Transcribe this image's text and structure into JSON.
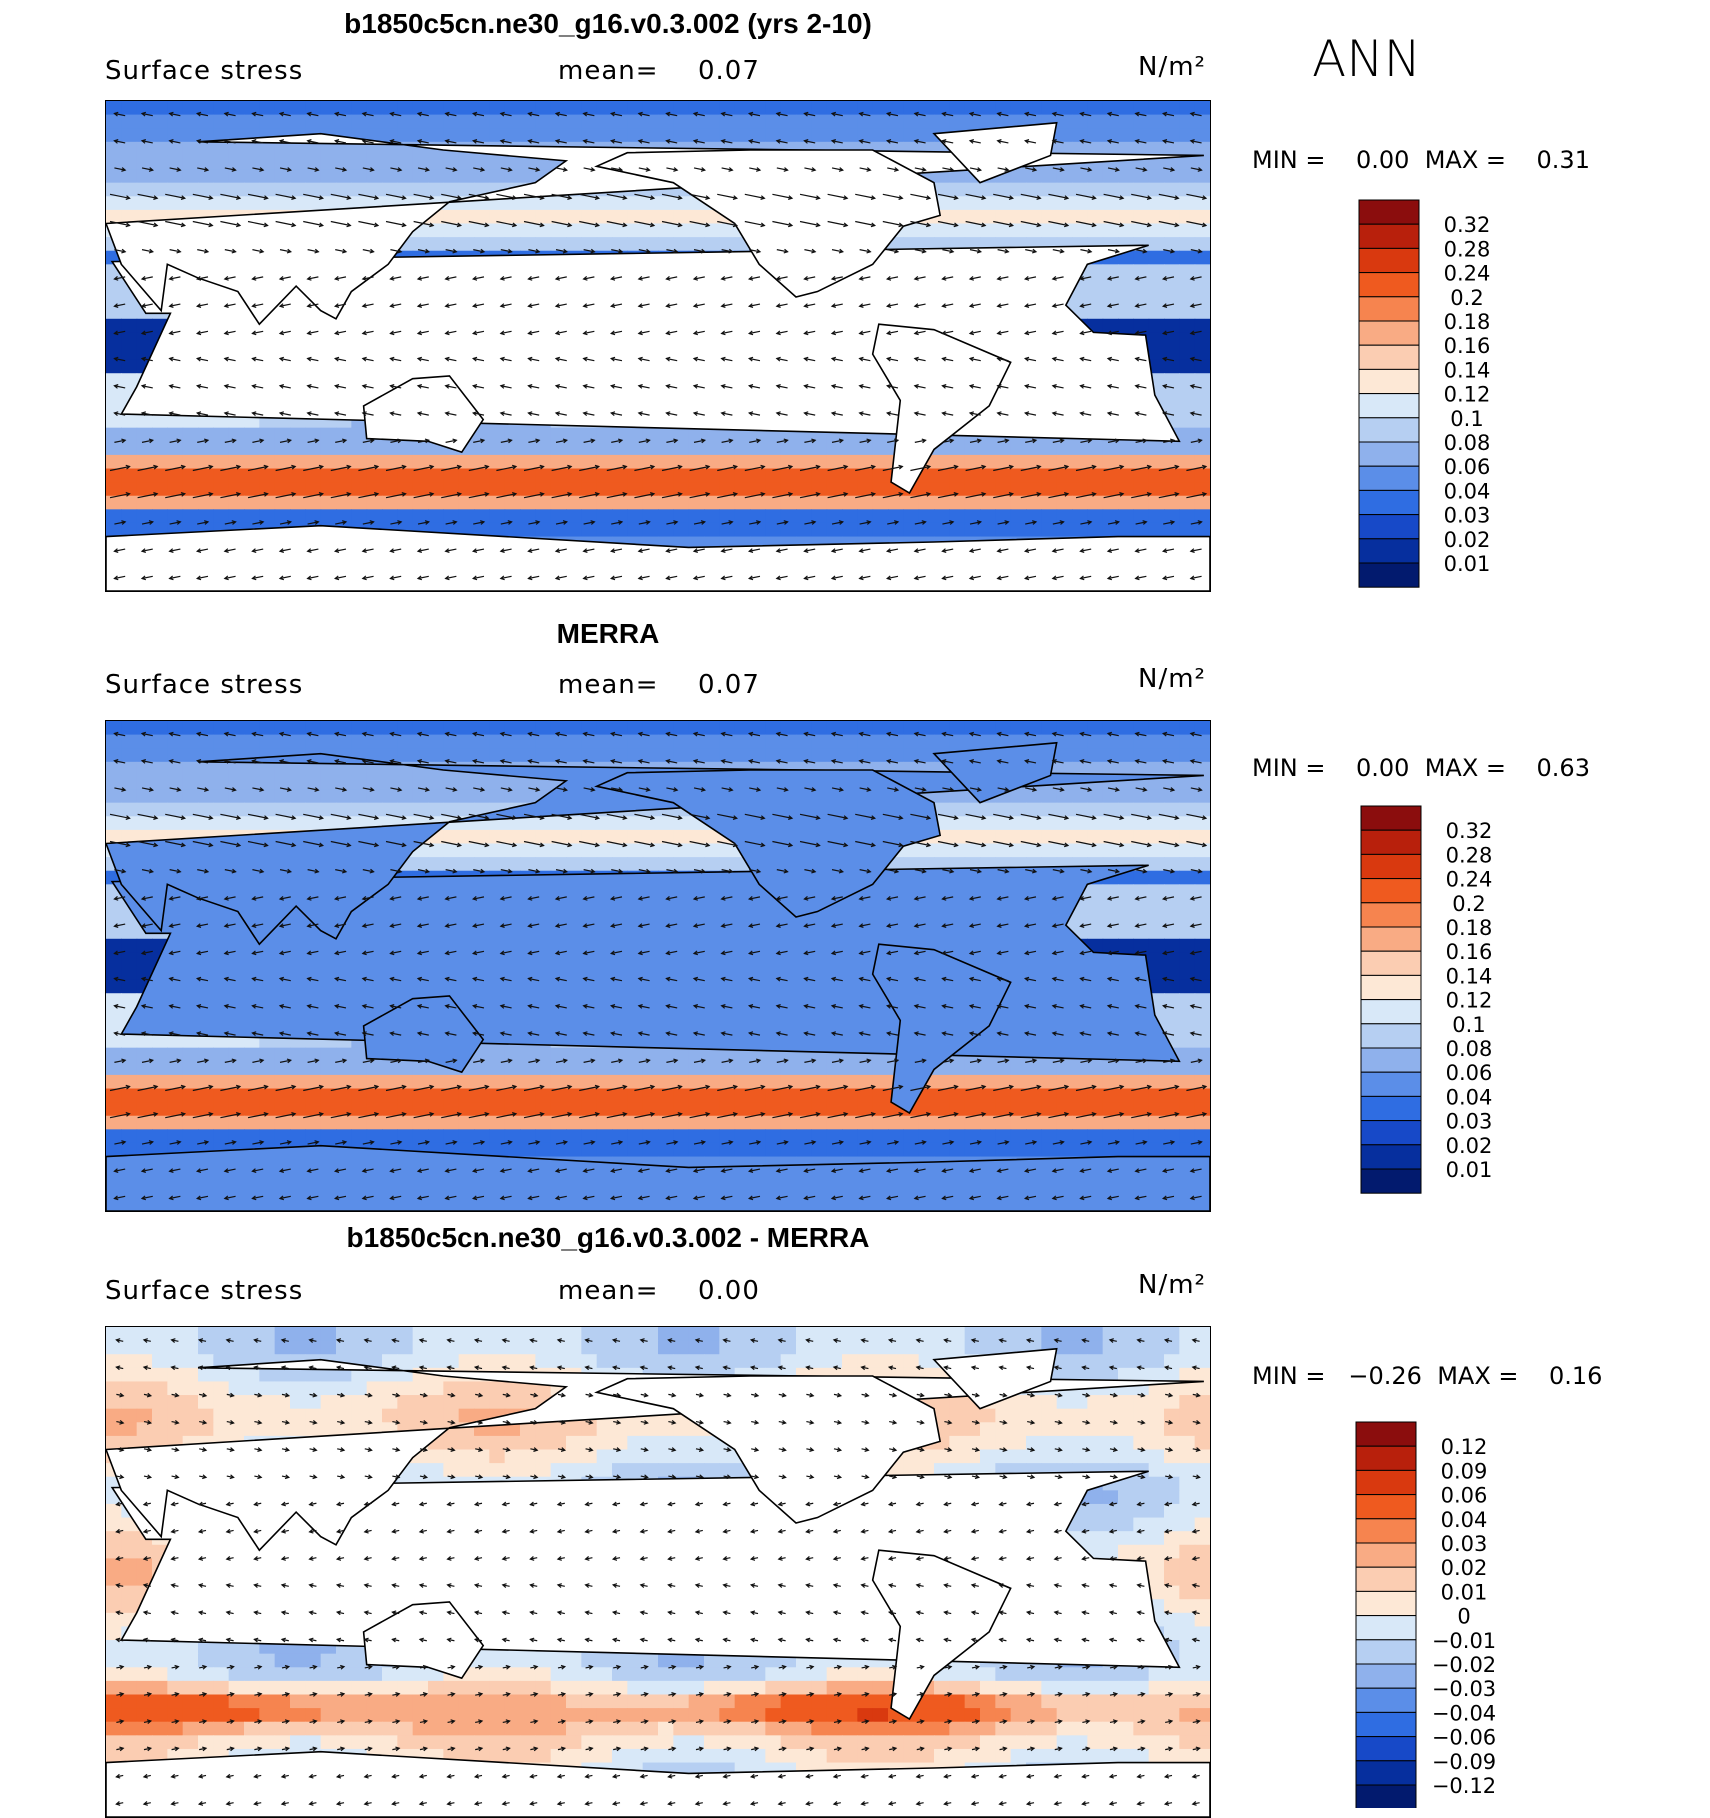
{
  "season": "ANN",
  "panels": [
    {
      "title": "b1850c5cn.ne30_g16.v0.3.002 (yrs 2-10)",
      "left_label": "Surface stress",
      "mean_label": "mean=",
      "mean_value": "0.07",
      "units": "N/m²",
      "min_label": "MIN =",
      "min_value": "0.00",
      "max_label": "MAX =",
      "max_value": "0.31",
      "colorbar_labels": [
        "0.32",
        "0.28",
        "0.24",
        "0.2",
        "0.18",
        "0.16",
        "0.14",
        "0.12",
        "0.1",
        "0.08",
        "0.06",
        "0.04",
        "0.03",
        "0.02",
        "0.01"
      ],
      "colors": [
        "#8b0d0d",
        "#b8200c",
        "#d9390f",
        "#ef5a1f",
        "#f6844f",
        "#f9ab84",
        "#fbcdb2",
        "#fde8d6",
        "#d8e8f8",
        "#b6cff2",
        "#8fb1ec",
        "#5b8ee8",
        "#2f6de2",
        "#1749c8",
        "#062f9e",
        "#021a6e"
      ]
    },
    {
      "title": "MERRA",
      "left_label": "Surface stress",
      "mean_label": "mean=",
      "mean_value": "0.07",
      "units": "N/m²",
      "min_label": "MIN =",
      "min_value": "0.00",
      "max_label": "MAX =",
      "max_value": "0.63",
      "colorbar_labels": [
        "0.32",
        "0.28",
        "0.24",
        "0.2",
        "0.18",
        "0.16",
        "0.14",
        "0.12",
        "0.1",
        "0.08",
        "0.06",
        "0.04",
        "0.03",
        "0.02",
        "0.01"
      ],
      "colors": [
        "#8b0d0d",
        "#b8200c",
        "#d9390f",
        "#ef5a1f",
        "#f6844f",
        "#f9ab84",
        "#fbcdb2",
        "#fde8d6",
        "#d8e8f8",
        "#b6cff2",
        "#8fb1ec",
        "#5b8ee8",
        "#2f6de2",
        "#1749c8",
        "#062f9e",
        "#021a6e"
      ]
    },
    {
      "title": "b1850c5cn.ne30_g16.v0.3.002 - MERRA",
      "left_label": "Surface stress",
      "mean_label": "mean=",
      "mean_value": "0.00",
      "units": "N/m²",
      "min_label": "MIN =",
      "min_value": "−0.26",
      "max_label": "MAX =",
      "max_value": "0.16",
      "colorbar_labels": [
        "0.12",
        "0.09",
        "0.06",
        "0.04",
        "0.03",
        "0.02",
        "0.01",
        "0",
        "−0.01",
        "−0.02",
        "−0.03",
        "−0.04",
        "−0.06",
        "−0.09",
        "−0.12"
      ],
      "colors": [
        "#8b0d0d",
        "#b8200c",
        "#d9390f",
        "#ef5a1f",
        "#f6844f",
        "#f9ab84",
        "#fbcdb2",
        "#fde8d6",
        "#d8e8f8",
        "#b6cff2",
        "#8fb1ec",
        "#5b8ee8",
        "#2f6de2",
        "#1749c8",
        "#062f9e",
        "#021a6e"
      ]
    }
  ],
  "chart_data": [
    {
      "type": "heatmap",
      "title": "b1850c5cn.ne30_g16.v0.3.002 (yrs 2-10)",
      "variable": "Surface stress",
      "units": "N/m²",
      "mean": 0.07,
      "min": 0.0,
      "max": 0.31,
      "levels": [
        0.01,
        0.02,
        0.03,
        0.04,
        0.06,
        0.08,
        0.1,
        0.12,
        0.14,
        0.16,
        0.18,
        0.2,
        0.24,
        0.28,
        0.32
      ]
    },
    {
      "type": "heatmap",
      "title": "MERRA",
      "variable": "Surface stress",
      "units": "N/m²",
      "mean": 0.07,
      "min": 0.0,
      "max": 0.63,
      "levels": [
        0.01,
        0.02,
        0.03,
        0.04,
        0.06,
        0.08,
        0.1,
        0.12,
        0.14,
        0.16,
        0.18,
        0.2,
        0.24,
        0.28,
        0.32
      ]
    },
    {
      "type": "heatmap",
      "title": "b1850c5cn.ne30_g16.v0.3.002 - MERRA",
      "variable": "Surface stress",
      "units": "N/m²",
      "mean": 0.0,
      "min": -0.26,
      "max": 0.16,
      "levels": [
        -0.12,
        -0.09,
        -0.06,
        -0.04,
        -0.03,
        -0.02,
        -0.01,
        0,
        0.01,
        0.02,
        0.03,
        0.04,
        0.06,
        0.09,
        0.12
      ]
    }
  ]
}
